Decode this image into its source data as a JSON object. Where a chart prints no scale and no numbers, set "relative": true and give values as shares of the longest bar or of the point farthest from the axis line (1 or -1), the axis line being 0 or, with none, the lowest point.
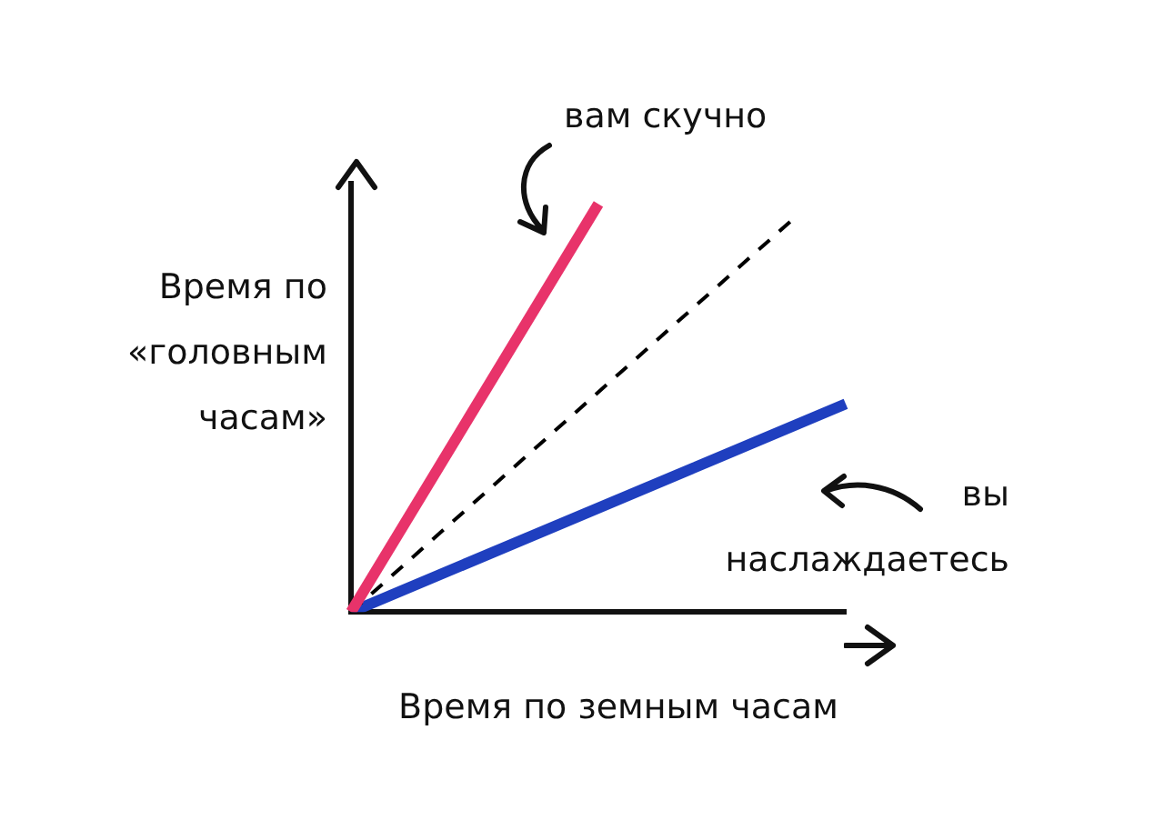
{
  "chart_data": {
    "type": "line",
    "relative": true,
    "xlabel": "Время по земным часам",
    "ylabel": "Время по «головным часам»",
    "marker": "none",
    "legend": false,
    "grid": false,
    "categories": [
      null,
      null,
      null,
      null,
      null,
      null,
      null,
      null,
      null,
      null,
      null
    ],
    "series": [
      {
        "color": "#e8336a",
        "values": [
          0,
          null,
          null,
          null,
          null,
          1,
          null,
          null,
          null,
          null,
          null
        ]
      },
      {
        "color": "#000000",
        "values": [
          0,
          null,
          null,
          null,
          null,
          null,
          null,
          null,
          null,
          0.97,
          null
        ],
        "line_style": "dashed"
      },
      {
        "color": "#1f3fbf",
        "values": [
          0,
          null,
          null,
          null,
          null,
          null,
          null,
          null,
          null,
          null,
          0.51
        ]
      }
    ],
    "annotations": [
      "вам скучно",
      "вы наслаждаетесь"
    ]
  }
}
